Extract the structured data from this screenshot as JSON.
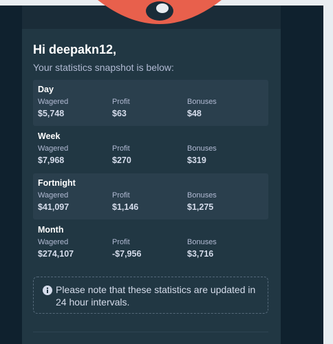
{
  "header": {
    "greeting": "Hi deepakn12,",
    "subtitle": "Your statistics snapshot is below:"
  },
  "column_labels": [
    "Wagered",
    "Profit",
    "Bonuses"
  ],
  "periods": [
    {
      "name": "Day",
      "values": [
        "$5,748",
        "$63",
        "$48"
      ]
    },
    {
      "name": "Week",
      "values": [
        "$7,968",
        "$270",
        "$319"
      ]
    },
    {
      "name": "Fortnight",
      "values": [
        "$41,097",
        "$1,146",
        "$1,275"
      ]
    },
    {
      "name": "Month",
      "values": [
        "$274,107",
        "-$7,956",
        "$3,716"
      ]
    }
  ],
  "note": "Please note that these statistics are updated in 24 hour intervals."
}
